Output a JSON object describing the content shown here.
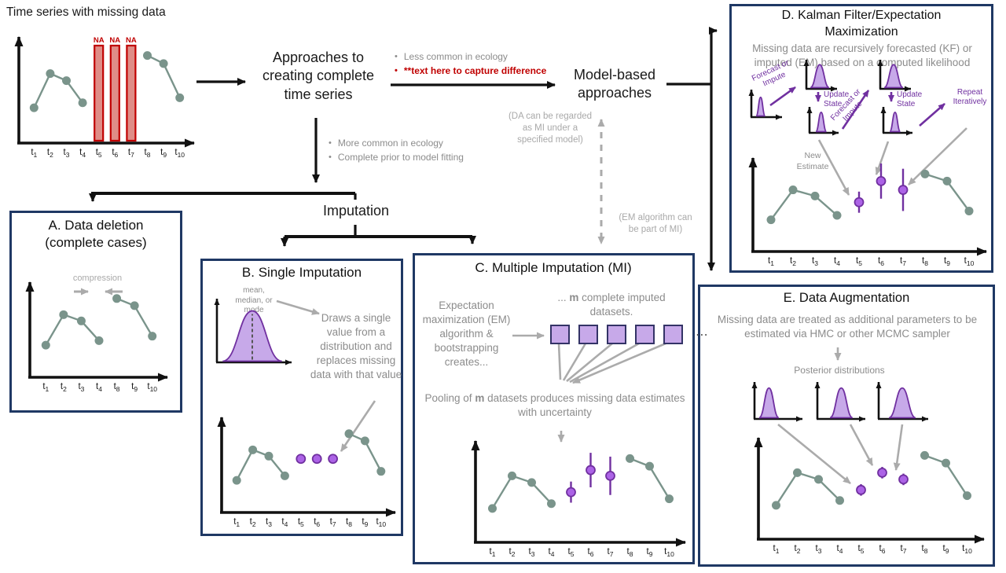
{
  "colors": {
    "teal": "#7A948B",
    "red": "#C00000",
    "red_fill": "#DF8D87",
    "purple": "#7030A0",
    "purple_fill": "#C7A9E9",
    "purple_dot": "#AC63E6",
    "navy": "#1F3864",
    "gray_arrow": "#ABABAB",
    "black": "#111111"
  },
  "header": {
    "title": "Time series with missing data"
  },
  "na_label": "NA",
  "flow": {
    "bullet_char": "•",
    "approaches": "Approaches to creating complete time series",
    "model_based": "Model-based approaches",
    "imputation": "Imputation",
    "top_bullets": [
      {
        "text": "Less common in ecology"
      },
      {
        "text": "**text here to capture difference"
      }
    ],
    "mid_bullets": [
      "More common in ecology",
      "Complete prior to model fitting"
    ],
    "da_note": "(DA can be regarded as MI under a specified model)",
    "em_note": "(EM algorithm can be part of MI)"
  },
  "boxes": {
    "a": {
      "title_line1": "A. Data deletion",
      "title_line2": "(complete cases)",
      "compression_label": "compression"
    },
    "b": {
      "title": "B. Single Imputation",
      "dist_label": "mean, median, or mode",
      "description": "Draws a single value from a distribution and replaces missing data with that value"
    },
    "c": {
      "title": "C. Multiple Imputation (MI)",
      "left_text": "Expectation maximization (EM) algorithm & bootstrapping creates...",
      "datasets_pre": "... ",
      "datasets_m": "m",
      "datasets_post": " complete imputed datasets.",
      "ellipsis": "⋯",
      "pooling_pre": "Pooling of ",
      "pooling_m": "m",
      "pooling_post": " datasets produces missing data estimates with uncertainty"
    },
    "d": {
      "title_line1": "D. Kalman Filter/Expectation",
      "title_line2": "Maximization",
      "subtitle": "Missing data are recursively forecasted (KF) or imputed (EM) based on a computed likelihood",
      "forecast_label": "Forecast or Impute",
      "update_label": "Update State",
      "repeat_label": "Repeat Iteratively",
      "new_estimate": "New Estimate"
    },
    "e": {
      "title": "E. Data Augmentation",
      "subtitle": "Missing data are treated as additional parameters to be estimated via HMC or other MCMC sampler",
      "posterior_label": "Posterior distributions"
    }
  },
  "chart_data": [
    {
      "id": "source",
      "type": "timeseries",
      "slots": 10,
      "xlabels": [
        "t1",
        "t2",
        "t3",
        "t4",
        "t5",
        "t6",
        "t7",
        "t8",
        "t9",
        "t10"
      ],
      "segments": [
        [
          [
            1,
            0.28
          ],
          [
            2,
            0.62
          ],
          [
            3,
            0.55
          ],
          [
            4,
            0.33
          ]
        ],
        [
          [
            8,
            0.8
          ],
          [
            9,
            0.72
          ],
          [
            10,
            0.38
          ]
        ]
      ],
      "na_bars": [
        5,
        6,
        7
      ]
    },
    {
      "id": "deletion",
      "type": "timeseries",
      "slots": 7,
      "xlabels": [
        "t1",
        "t2",
        "t3",
        "t4",
        "t8",
        "t9",
        "t10"
      ],
      "segments": [
        [
          [
            1,
            0.28
          ],
          [
            2,
            0.62
          ],
          [
            3,
            0.55
          ],
          [
            4,
            0.33
          ]
        ],
        [
          [
            5,
            0.8
          ],
          [
            6,
            0.72
          ],
          [
            7,
            0.38
          ]
        ]
      ]
    },
    {
      "id": "single-dist",
      "type": "dist",
      "peak": 0.5,
      "hw": 0.46,
      "amp": 0.82,
      "dashed": true
    },
    {
      "id": "single",
      "type": "timeseries",
      "slots": 10,
      "xlabels": [
        "t1",
        "t2",
        "t3",
        "t4",
        "t5",
        "t6",
        "t7",
        "t8",
        "t9",
        "t10"
      ],
      "segments": [
        [
          [
            1,
            0.28
          ],
          [
            2,
            0.62
          ],
          [
            3,
            0.55
          ],
          [
            4,
            0.33
          ]
        ],
        [
          [
            8,
            0.8
          ],
          [
            9,
            0.72
          ],
          [
            10,
            0.38
          ]
        ]
      ],
      "imputed": [
        [
          5,
          0.52,
          0
        ],
        [
          6,
          0.52,
          0
        ],
        [
          7,
          0.52,
          0
        ]
      ]
    },
    {
      "id": "multiple",
      "type": "timeseries",
      "slots": 10,
      "xlabels": [
        "t1",
        "t2",
        "t3",
        "t4",
        "t5",
        "t6",
        "t7",
        "t8",
        "t9",
        "t10"
      ],
      "segments": [
        [
          [
            1,
            0.28
          ],
          [
            2,
            0.62
          ],
          [
            3,
            0.55
          ],
          [
            4,
            0.33
          ]
        ],
        [
          [
            8,
            0.8
          ],
          [
            9,
            0.72
          ],
          [
            10,
            0.38
          ]
        ]
      ],
      "imputed": [
        [
          5,
          0.45,
          0.11
        ],
        [
          6,
          0.68,
          0.18
        ],
        [
          7,
          0.62,
          0.2
        ]
      ]
    },
    {
      "id": "kf-dist-1",
      "type": "dist",
      "peak": 0.3,
      "hw": 0.22,
      "amp": 0.74
    },
    {
      "id": "kf-dist-2",
      "type": "dist",
      "peak": 0.5,
      "hw": 0.46,
      "amp": 0.86
    },
    {
      "id": "kf-dist-3",
      "type": "dist",
      "peak": 0.45,
      "hw": 0.28,
      "amp": 0.82
    },
    {
      "id": "kf-dist-4",
      "type": "dist",
      "peak": 0.5,
      "hw": 0.46,
      "amp": 0.86
    },
    {
      "id": "kf-dist-5",
      "type": "dist",
      "peak": 0.45,
      "hw": 0.28,
      "amp": 0.82
    },
    {
      "id": "kalman",
      "type": "timeseries",
      "slots": 10,
      "xlabels": [
        "t1",
        "t2",
        "t3",
        "t4",
        "t5",
        "t6",
        "t7",
        "t8",
        "t9",
        "t10"
      ],
      "segments": [
        [
          [
            1,
            0.28
          ],
          [
            2,
            0.62
          ],
          [
            3,
            0.55
          ],
          [
            4,
            0.33
          ]
        ],
        [
          [
            8,
            0.8
          ],
          [
            9,
            0.72
          ],
          [
            10,
            0.38
          ]
        ]
      ],
      "imputed": [
        [
          5,
          0.48,
          0.12
        ],
        [
          6,
          0.72,
          0.2
        ],
        [
          7,
          0.62,
          0.24
        ]
      ]
    },
    {
      "id": "da-dist-1",
      "type": "dist",
      "peak": 0.3,
      "hw": 0.26,
      "amp": 0.86
    },
    {
      "id": "da-dist-2",
      "type": "dist",
      "peak": 0.55,
      "hw": 0.3,
      "amp": 0.86
    },
    {
      "id": "da-dist-3",
      "type": "dist",
      "peak": 0.52,
      "hw": 0.34,
      "amp": 0.86
    },
    {
      "id": "augmentation",
      "type": "timeseries",
      "slots": 10,
      "xlabels": [
        "t1",
        "t2",
        "t3",
        "t4",
        "t5",
        "t6",
        "t7",
        "t8",
        "t9",
        "t10"
      ],
      "segments": [
        [
          [
            1,
            0.28
          ],
          [
            2,
            0.62
          ],
          [
            3,
            0.55
          ],
          [
            4,
            0.33
          ]
        ],
        [
          [
            8,
            0.8
          ],
          [
            9,
            0.72
          ],
          [
            10,
            0.38
          ]
        ]
      ],
      "imputed": [
        [
          5,
          0.44,
          0.06
        ],
        [
          6,
          0.62,
          0.06
        ],
        [
          7,
          0.55,
          0.06
        ]
      ]
    }
  ]
}
